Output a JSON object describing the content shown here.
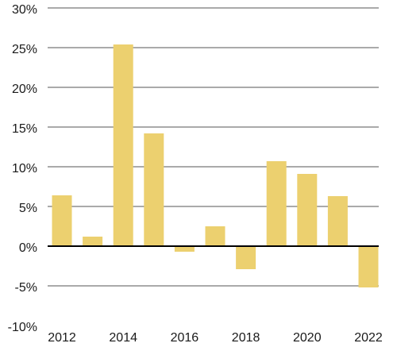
{
  "chart_data": {
    "type": "bar",
    "title": "",
    "xlabel": "",
    "ylabel": "",
    "categories": [
      "2012",
      "2013",
      "2014",
      "2015",
      "2016",
      "2017",
      "2018",
      "2019",
      "2020",
      "2021",
      "2022"
    ],
    "values": [
      6.4,
      1.2,
      25.4,
      14.2,
      -0.7,
      2.5,
      -2.9,
      10.7,
      9.1,
      6.3,
      -5.2
    ],
    "x_tick_labels": [
      "2012",
      "2014",
      "2016",
      "2018",
      "2020",
      "2022"
    ],
    "y_ticks": [
      30,
      25,
      20,
      15,
      10,
      5,
      0,
      -5,
      -10
    ],
    "y_tick_labels": [
      "30%",
      "25%",
      "20%",
      "15%",
      "10%",
      "5%",
      "0%",
      "-5%",
      "-10%"
    ],
    "ylim": [
      -10,
      30
    ],
    "grid": true,
    "bar_color": "#ecd06f",
    "grid_color": "#555555",
    "zero_line_color": "#000000"
  }
}
